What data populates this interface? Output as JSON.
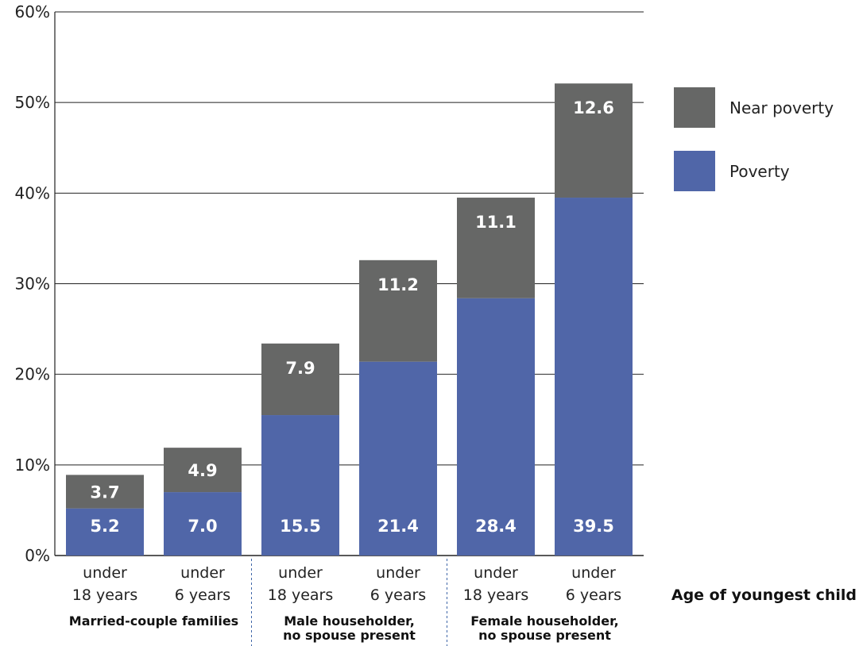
{
  "chart_data": {
    "type": "bar",
    "stacked": true,
    "x_title": "Age of youngest child",
    "y_ticks": [
      "0%",
      "10%",
      "20%",
      "30%",
      "40%",
      "50%",
      "60%"
    ],
    "ylim": [
      0,
      60
    ],
    "grid": true,
    "legend_position": "right",
    "categories": [
      {
        "line1": "under",
        "line2": "18 years"
      },
      {
        "line1": "under",
        "line2": "6 years"
      },
      {
        "line1": "under",
        "line2": "18 years"
      },
      {
        "line1": "under",
        "line2": "6 years"
      },
      {
        "line1": "under",
        "line2": "18 years"
      },
      {
        "line1": "under",
        "line2": "6 years"
      }
    ],
    "groups": [
      {
        "lines": [
          "Married-couple families"
        ],
        "span": [
          0,
          1
        ]
      },
      {
        "lines": [
          "Male householder,",
          "no spouse present"
        ],
        "span": [
          2,
          3
        ]
      },
      {
        "lines": [
          "Female householder,",
          "no spouse present"
        ],
        "span": [
          4,
          5
        ]
      }
    ],
    "series": [
      {
        "name": "Poverty",
        "color": "#5066a8",
        "values": [
          5.2,
          7.0,
          15.5,
          21.4,
          28.4,
          39.5
        ],
        "labels": [
          "5.2",
          "7.0",
          "15.5",
          "21.4",
          "28.4",
          "39.5"
        ]
      },
      {
        "name": "Near poverty",
        "color": "#666766",
        "values": [
          3.7,
          4.9,
          7.9,
          11.2,
          11.1,
          12.6
        ],
        "labels": [
          "3.7",
          "4.9",
          "7.9",
          "11.2",
          "11.1",
          "12.6"
        ]
      }
    ],
    "legend_order": [
      1,
      0
    ]
  }
}
